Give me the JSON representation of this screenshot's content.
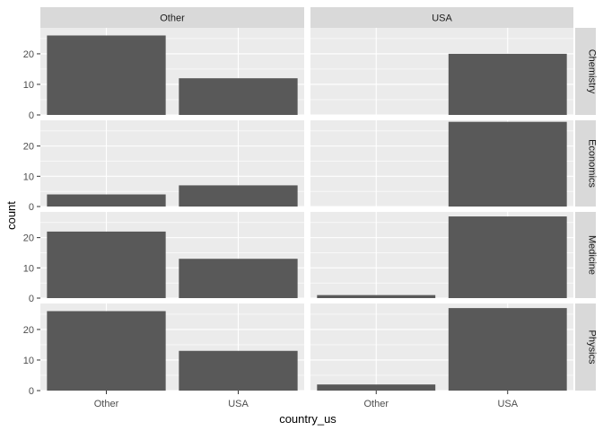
{
  "chart_data": {
    "type": "bar",
    "facet_cols": [
      "Other",
      "USA"
    ],
    "facet_rows": [
      "Chemistry",
      "Economics",
      "Medicine",
      "Physics"
    ],
    "categories": [
      "Other",
      "USA"
    ],
    "xlabel": "country_us",
    "ylabel": "count",
    "ylim": [
      0,
      28.5
    ],
    "yticks": [
      0,
      10,
      20
    ],
    "grid": true,
    "panels": [
      {
        "row": "Chemistry",
        "col": "Other",
        "values": [
          26,
          12
        ]
      },
      {
        "row": "Chemistry",
        "col": "USA",
        "values": [
          0,
          20
        ]
      },
      {
        "row": "Economics",
        "col": "Other",
        "values": [
          4,
          7
        ]
      },
      {
        "row": "Economics",
        "col": "USA",
        "values": [
          0,
          28
        ]
      },
      {
        "row": "Medicine",
        "col": "Other",
        "values": [
          22,
          13
        ]
      },
      {
        "row": "Medicine",
        "col": "USA",
        "values": [
          1,
          27
        ]
      },
      {
        "row": "Physics",
        "col": "Other",
        "values": [
          26,
          13
        ]
      },
      {
        "row": "Physics",
        "col": "USA",
        "values": [
          2,
          27
        ]
      }
    ],
    "colors": {
      "panel_bg": "#ebebeb",
      "strip_bg": "#d9d9d9",
      "bar": "#595959",
      "grid_major": "#ffffff",
      "grid_minor": "#f5f5f5",
      "text": "#4d4d4d"
    }
  }
}
